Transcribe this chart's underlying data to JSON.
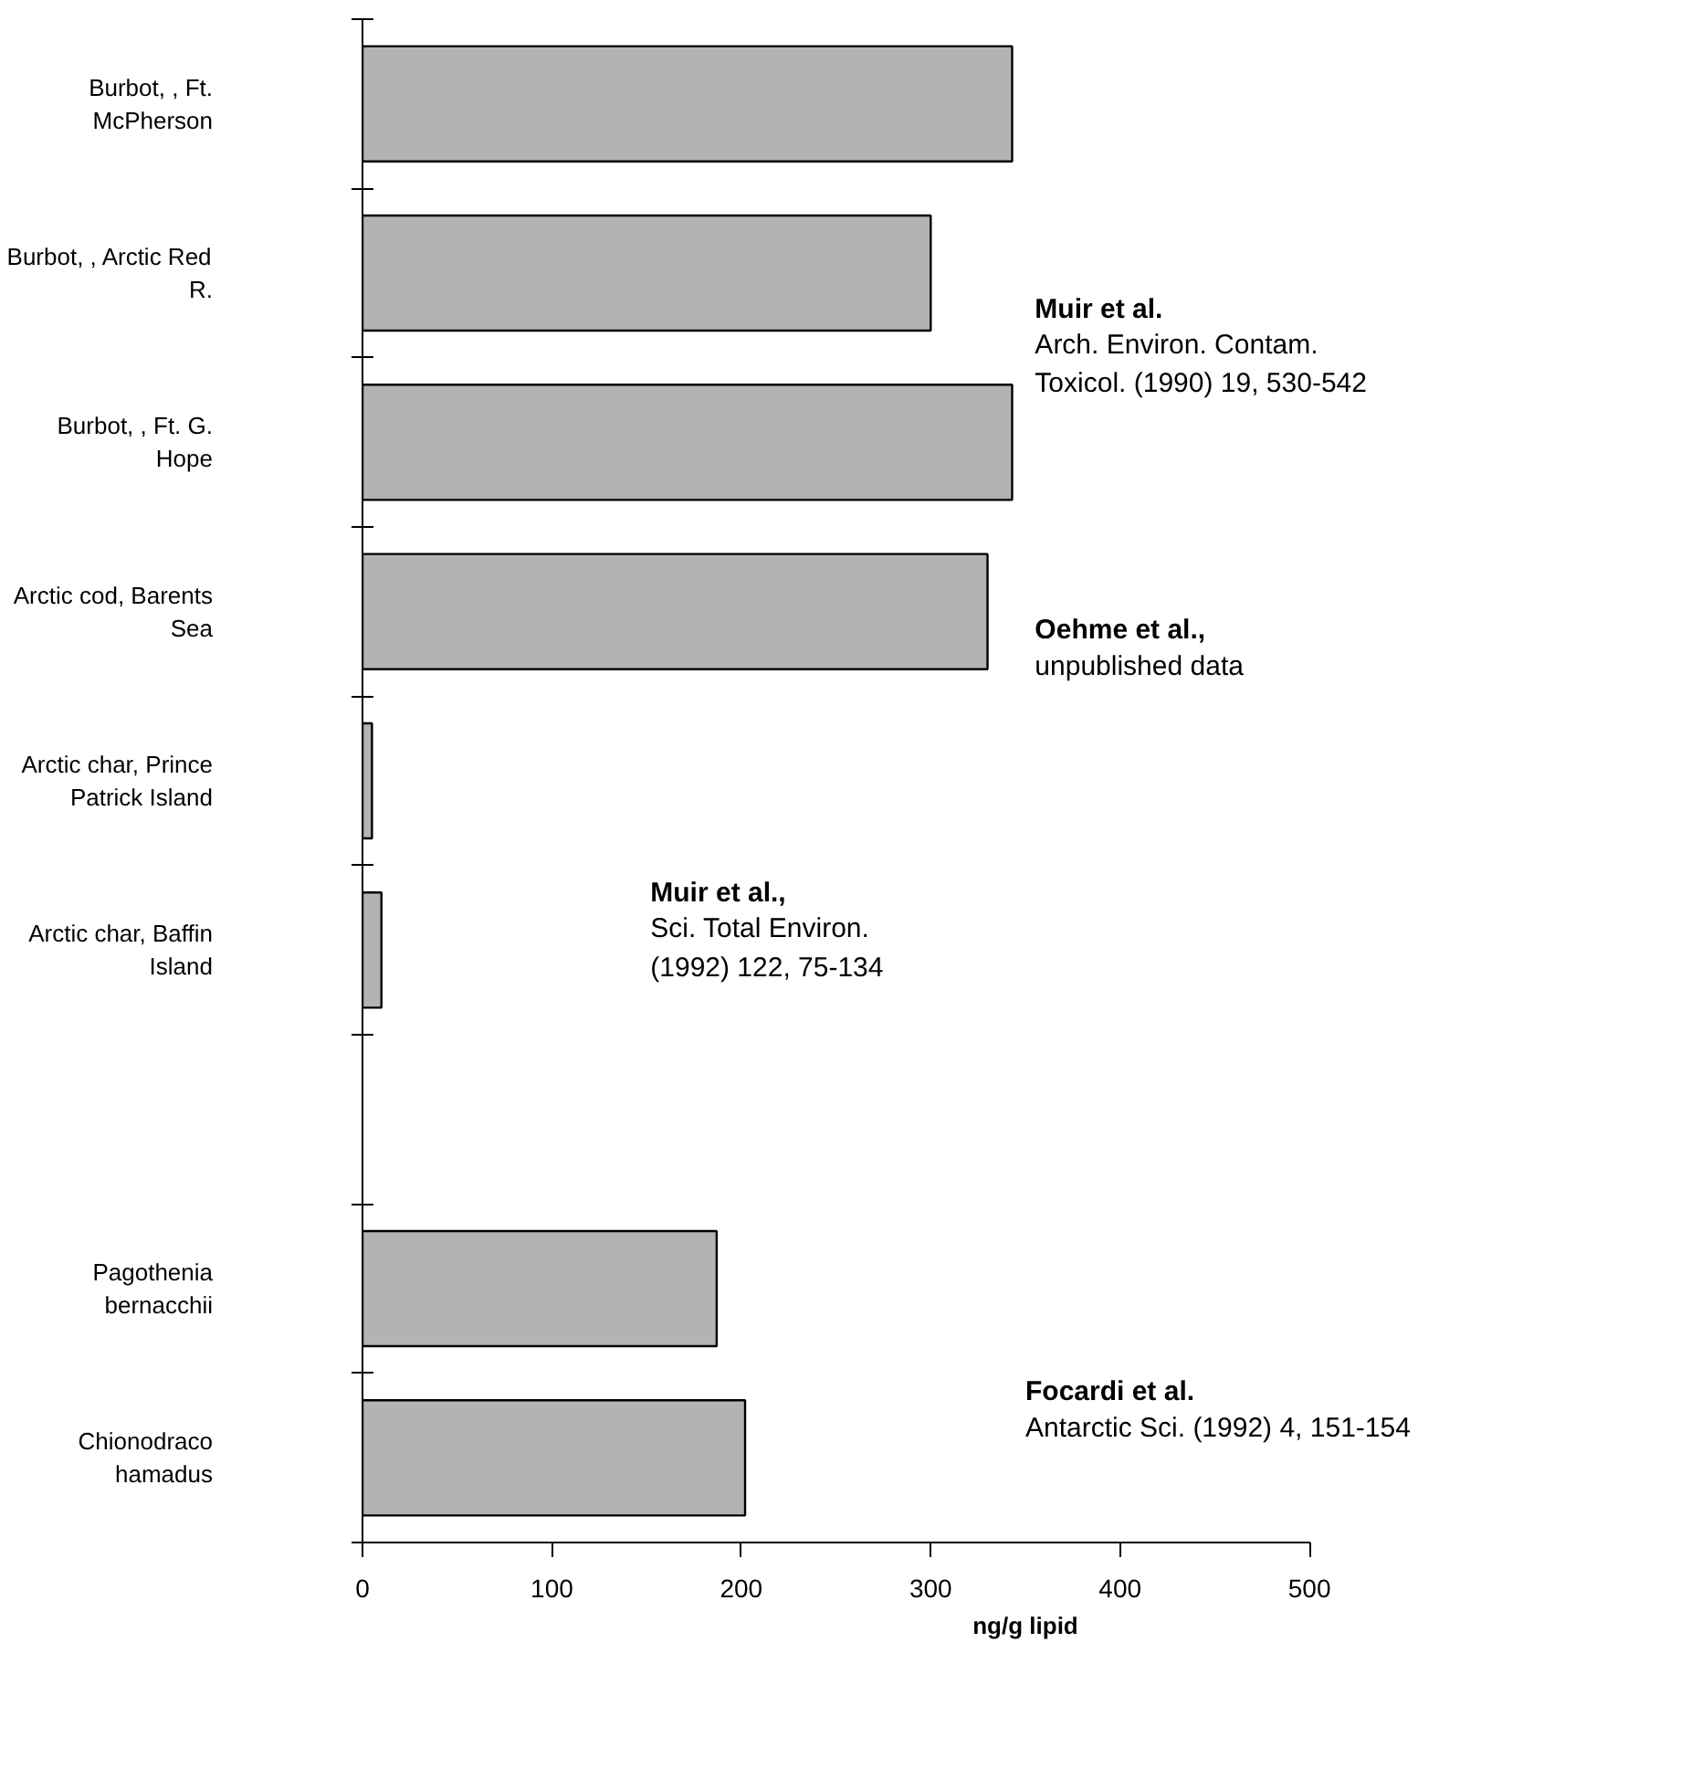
{
  "chart_data": {
    "type": "bar",
    "orientation": "horizontal",
    "xlabel": "ng/g lipid",
    "categories": [
      "Burbot, , Ft. McPherson",
      "Burbot, , Arctic Red R.",
      "Burbot, , Ft. G. Hope",
      "Arctic cod, Barents Sea",
      "Arctic char, Prince Patrick Island",
      "Arctic char, Baffin Island",
      null,
      "Pagothenia bernacchii",
      "Chionodraco hamadus"
    ],
    "values": [
      343,
      300,
      343,
      330,
      5,
      10,
      null,
      187,
      202
    ],
    "color": "#b3b3b3",
    "xlim": [
      0,
      500
    ],
    "xticks": [
      0,
      100,
      200,
      300,
      400,
      500
    ],
    "annotations": [
      "Muir et al.\nArch. Environ. Contam.\nToxicol. (1990) 19, 530-542",
      "Oehme et al.,\nunpublished data",
      "Muir et al.,\nSci. Total Environ.\n(1992) 122, 75-134",
      "Focardi et al.\nAntarctic Sci. (1992) 4, 151-154"
    ]
  }
}
